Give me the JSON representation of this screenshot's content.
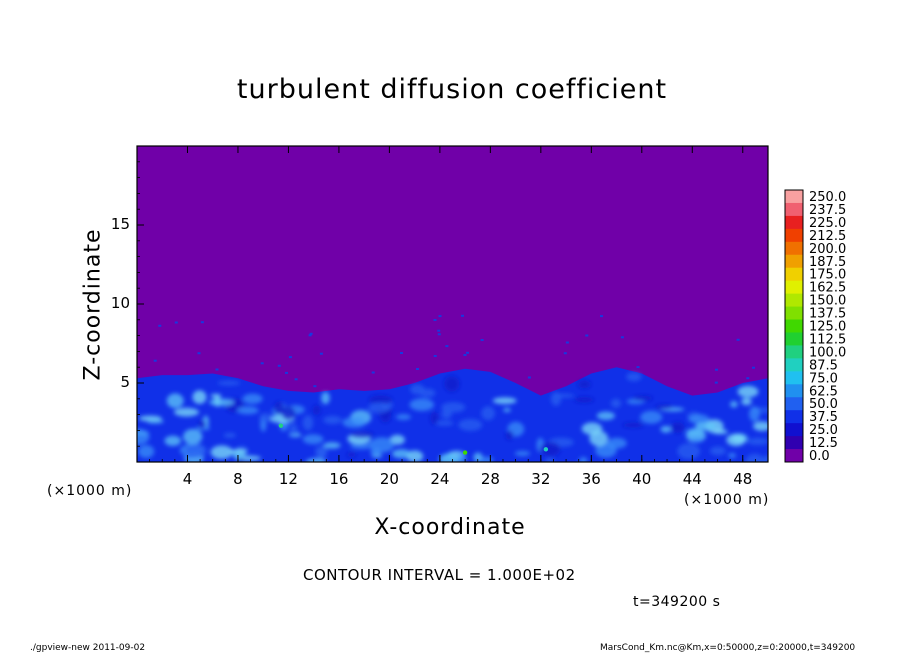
{
  "chart_data": {
    "type": "heatmap",
    "title": "turbulent diffusion coefficient",
    "xlabel": "X-coordinate",
    "ylabel": "Z-coordinate",
    "x_unit": "(×1000 m)",
    "y_unit": "(×1000 m)",
    "xlim": [
      0,
      50
    ],
    "ylim": [
      0,
      20
    ],
    "x_ticks": [
      "4",
      "8",
      "12",
      "16",
      "20",
      "24",
      "28",
      "32",
      "36",
      "40",
      "44",
      "48"
    ],
    "y_ticks": [
      "5",
      "10",
      "15"
    ],
    "colorbar_levels": [
      "250.0",
      "237.5",
      "225.0",
      "212.5",
      "200.0",
      "187.5",
      "175.0",
      "162.5",
      "150.0",
      "137.5",
      "125.0",
      "112.5",
      "100.0",
      "87.5",
      "75.0",
      "62.5",
      "50.0",
      "37.5",
      "25.0",
      "12.5",
      "0.0"
    ],
    "colorbar_colors": [
      "#f8a0a0",
      "#f06070",
      "#e82020",
      "#f04000",
      "#f07000",
      "#f0a000",
      "#f0d000",
      "#e0f000",
      "#b0e800",
      "#80e000",
      "#40d800",
      "#20d030",
      "#20d080",
      "#20d0c0",
      "#20c0f0",
      "#2090f0",
      "#2060f0",
      "#1030e8",
      "#1010d0",
      "#3000b0",
      "#7000a8"
    ],
    "background_value_color": "#7000a8",
    "contour_interval": "CONTOUR INTERVAL = 1.000E+02",
    "time_label": "t=349200 s",
    "turbulent_layer": {
      "x": [
        0,
        2,
        4,
        6,
        8,
        10,
        12,
        14,
        16,
        18,
        20,
        22,
        24,
        26,
        28,
        30,
        32,
        34,
        36,
        38,
        40,
        42,
        44,
        46,
        48,
        50
      ],
      "top_z": [
        5.3,
        5.5,
        5.5,
        5.6,
        5.3,
        4.8,
        4.5,
        4.4,
        4.6,
        4.5,
        4.6,
        5.0,
        5.6,
        5.9,
        5.7,
        5.0,
        4.2,
        4.8,
        5.6,
        6.0,
        5.6,
        4.8,
        4.2,
        4.4,
        5.0,
        5.3
      ]
    }
  },
  "footer": {
    "left": "./gpview-new  2011-09-02",
    "right": "MarsCond_Km.nc@Km,x=0:50000,z=0:20000,t=349200"
  }
}
